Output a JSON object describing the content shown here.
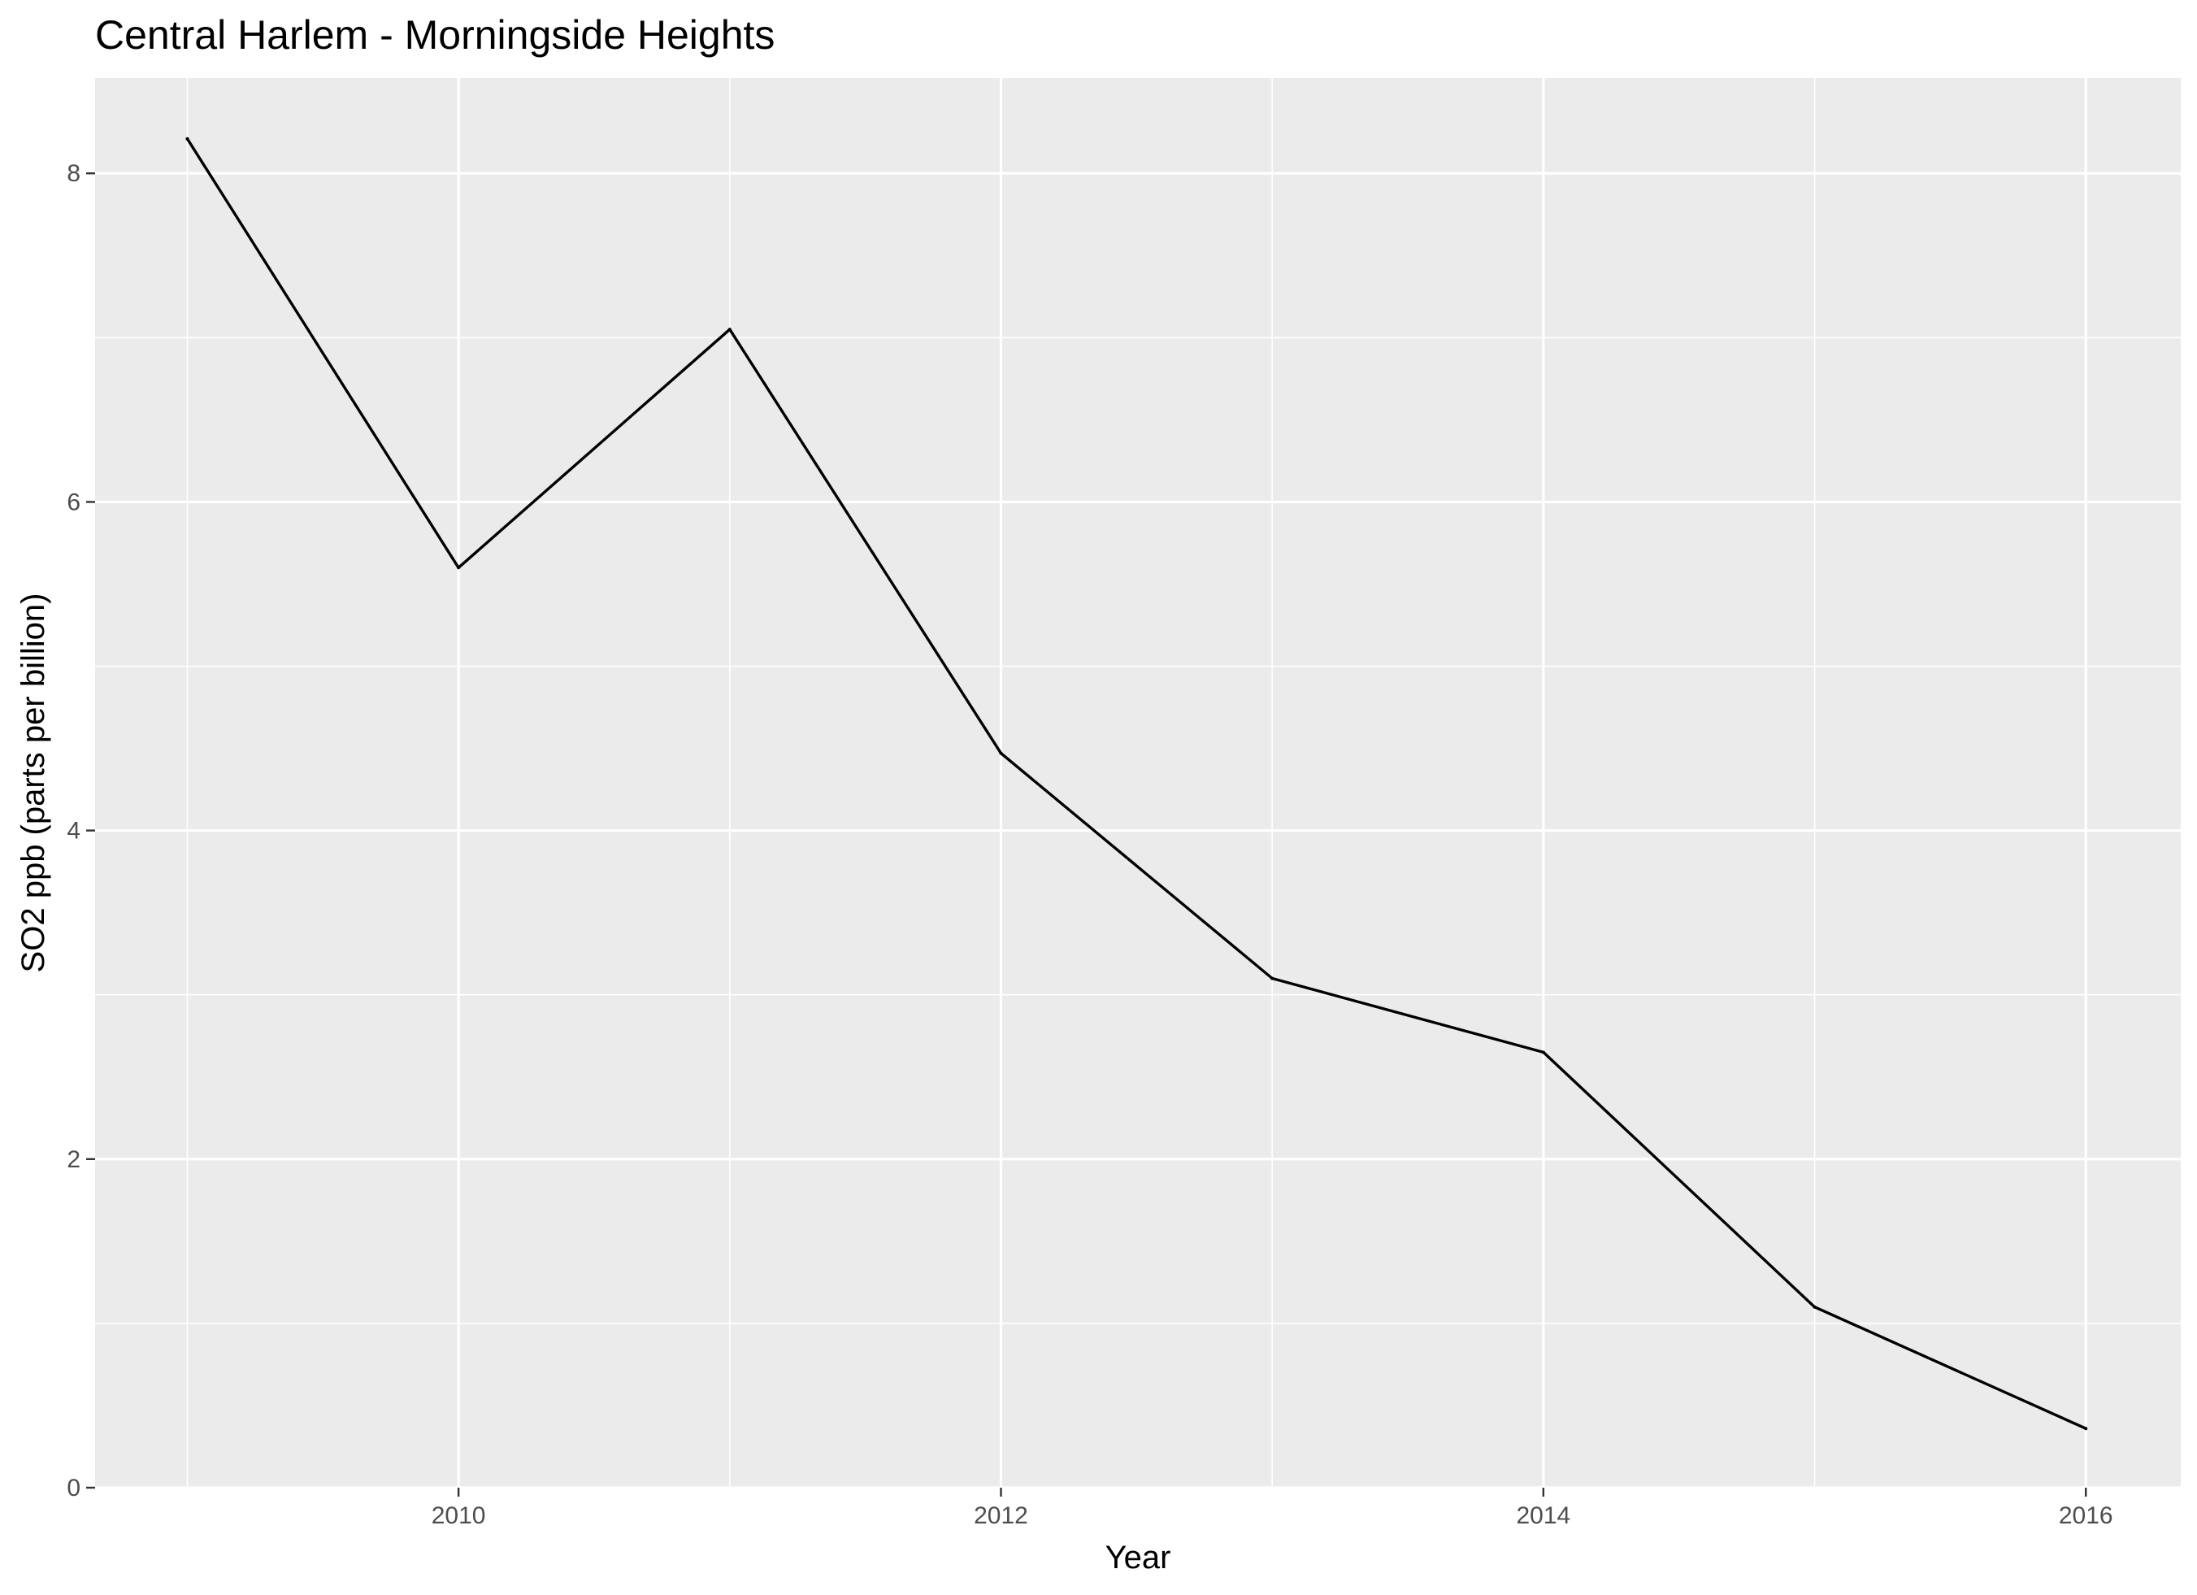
{
  "chart_data": {
    "type": "line",
    "title": "Central Harlem - Morningside Heights",
    "xlabel": "Year",
    "ylabel": "SO2 ppb (parts per billion)",
    "x": [
      2009,
      2010,
      2011,
      2012,
      2013,
      2014,
      2015,
      2016
    ],
    "series": [
      {
        "values": [
          8.21,
          5.6,
          7.05,
          4.47,
          3.1,
          2.65,
          1.1,
          0.36
        ]
      }
    ],
    "xlim": [
      2008.66,
      2016.35
    ],
    "ylim": [
      0,
      8.58
    ],
    "x_ticks": [
      2010,
      2012,
      2014,
      2016
    ],
    "x_tick_labels": [
      "2010",
      "2012",
      "2014",
      "2016"
    ],
    "x_minor_ticks": [
      2009,
      2011,
      2013,
      2015
    ],
    "y_ticks": [
      0,
      2,
      4,
      6,
      8
    ],
    "y_tick_labels": [
      "0",
      "2",
      "4",
      "6",
      "8"
    ],
    "y_minor_ticks": [
      1,
      3,
      5,
      7
    ],
    "grid": true,
    "legend": "none",
    "colors": {
      "panel_background": "#EBEBEB",
      "grid_line": "#FFFFFF",
      "series_line": "#000000",
      "tick_mark": "#333333",
      "tick_label": "#4D4D4D"
    }
  }
}
